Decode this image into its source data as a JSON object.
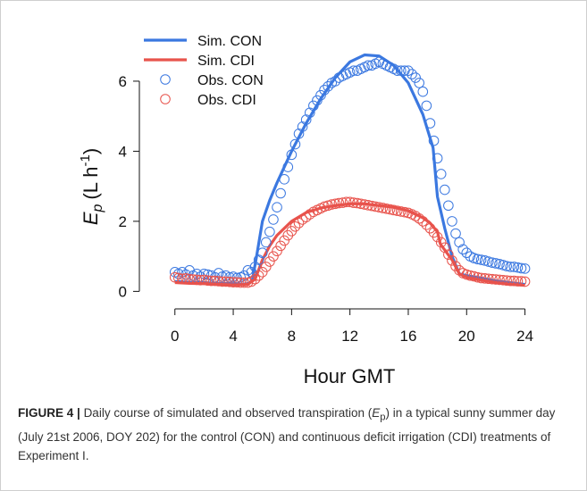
{
  "chart_data": {
    "type": "line_scatter",
    "x_label": "Hour GMT",
    "y_label": {
      "symbol": "E",
      "symbol_sub": "p",
      "unit": "(L h",
      "unit_sup": "-1",
      "close": ")"
    },
    "xlim": [
      -1.7,
      24.7
    ],
    "ylim": [
      -0.5,
      7.4
    ],
    "xticks": [
      0,
      4,
      8,
      12,
      16,
      20,
      24
    ],
    "yticks": [
      0,
      2,
      4,
      6
    ],
    "legend": "top-left",
    "x": [
      0,
      0.25,
      0.5,
      0.75,
      1,
      1.25,
      1.5,
      1.75,
      2,
      2.25,
      2.5,
      2.75,
      3,
      3.25,
      3.5,
      3.75,
      4,
      4.25,
      4.5,
      4.75,
      5,
      5.25,
      5.5,
      5.75,
      6,
      6.25,
      6.5,
      6.75,
      7,
      7.25,
      7.5,
      7.75,
      8,
      8.25,
      8.5,
      8.75,
      9,
      9.25,
      9.5,
      9.75,
      10,
      10.25,
      10.5,
      10.75,
      11,
      11.25,
      11.5,
      11.75,
      12,
      12.25,
      12.5,
      12.75,
      13,
      13.25,
      13.5,
      13.75,
      14,
      14.25,
      14.5,
      14.75,
      15,
      15.25,
      15.5,
      15.75,
      16,
      16.25,
      16.5,
      16.75,
      17,
      17.25,
      17.5,
      17.75,
      18,
      18.25,
      18.5,
      18.75,
      19,
      19.25,
      19.5,
      19.75,
      20,
      20.25,
      20.5,
      20.75,
      21,
      21.25,
      21.5,
      21.75,
      22,
      22.25,
      22.5,
      22.75,
      23,
      23.25,
      23.5,
      23.75,
      24
    ],
    "series": [
      {
        "name": "Sim. CON",
        "color": "#3b78e0",
        "style": "line",
        "x": [
          0,
          1,
          2,
          3,
          4,
          4.5,
          5,
          5.3,
          5.6,
          6,
          6.5,
          7,
          7.5,
          8,
          9,
          10,
          11,
          12,
          13,
          14,
          15,
          16,
          17,
          17.7,
          18,
          18.5,
          19,
          19.5,
          20,
          21,
          22,
          23,
          24
        ],
        "values": [
          0.28,
          0.26,
          0.25,
          0.23,
          0.22,
          0.2,
          0.22,
          0.3,
          1.0,
          2.0,
          2.6,
          3.1,
          3.55,
          4.0,
          4.8,
          5.5,
          6.1,
          6.55,
          6.75,
          6.72,
          6.45,
          5.95,
          5.05,
          4.1,
          2.7,
          1.8,
          1.0,
          0.5,
          0.45,
          0.38,
          0.3,
          0.25,
          0.2
        ]
      },
      {
        "name": "Sim. CDI",
        "color": "#e8534c",
        "style": "line",
        "x": [
          0,
          1,
          2,
          3,
          4,
          5,
          5.5,
          6,
          6.5,
          7,
          8,
          9,
          10,
          11,
          12,
          13,
          14,
          15,
          16,
          17,
          17.5,
          18,
          18.2,
          19,
          19.5,
          20,
          21,
          22,
          23,
          24
        ],
        "values": [
          0.25,
          0.23,
          0.22,
          0.2,
          0.18,
          0.2,
          0.35,
          0.9,
          1.3,
          1.6,
          2.0,
          2.25,
          2.38,
          2.45,
          2.5,
          2.5,
          2.45,
          2.4,
          2.3,
          2.1,
          1.95,
          1.7,
          1.35,
          0.9,
          0.5,
          0.4,
          0.32,
          0.25,
          0.2,
          0.17
        ]
      },
      {
        "name": "Obs. CON",
        "color": "#3b78e0",
        "style": "circle",
        "values": [
          0.55,
          0.5,
          0.55,
          0.48,
          0.6,
          0.45,
          0.5,
          0.42,
          0.5,
          0.48,
          0.45,
          0.4,
          0.52,
          0.42,
          0.45,
          0.4,
          0.42,
          0.38,
          0.4,
          0.45,
          0.6,
          0.55,
          0.7,
          0.9,
          1.1,
          1.4,
          1.7,
          2.05,
          2.4,
          2.8,
          3.2,
          3.55,
          3.9,
          4.2,
          4.5,
          4.7,
          4.9,
          5.1,
          5.3,
          5.45,
          5.6,
          5.75,
          5.85,
          5.95,
          6.0,
          6.1,
          6.15,
          6.2,
          6.25,
          6.3,
          6.3,
          6.35,
          6.4,
          6.45,
          6.45,
          6.5,
          6.55,
          6.5,
          6.45,
          6.4,
          6.35,
          6.3,
          6.3,
          6.3,
          6.3,
          6.2,
          6.1,
          5.95,
          5.7,
          5.3,
          4.8,
          4.3,
          3.8,
          3.35,
          2.9,
          2.45,
          2.0,
          1.65,
          1.4,
          1.2,
          1.1,
          1.0,
          0.95,
          0.92,
          0.9,
          0.88,
          0.85,
          0.82,
          0.8,
          0.78,
          0.75,
          0.72,
          0.7,
          0.7,
          0.68,
          0.66,
          0.65
        ]
      },
      {
        "name": "Obs. CDI",
        "color": "#e8534c",
        "style": "circle",
        "values": [
          0.4,
          0.38,
          0.36,
          0.37,
          0.35,
          0.34,
          0.33,
          0.32,
          0.33,
          0.31,
          0.3,
          0.3,
          0.29,
          0.28,
          0.28,
          0.27,
          0.26,
          0.26,
          0.25,
          0.25,
          0.25,
          0.28,
          0.35,
          0.45,
          0.55,
          0.7,
          0.85,
          1.0,
          1.15,
          1.3,
          1.45,
          1.6,
          1.72,
          1.85,
          1.95,
          2.05,
          2.12,
          2.2,
          2.27,
          2.32,
          2.37,
          2.42,
          2.45,
          2.48,
          2.5,
          2.52,
          2.53,
          2.55,
          2.55,
          2.53,
          2.52,
          2.5,
          2.48,
          2.46,
          2.44,
          2.42,
          2.4,
          2.38,
          2.36,
          2.34,
          2.32,
          2.3,
          2.28,
          2.26,
          2.24,
          2.2,
          2.15,
          2.08,
          2.0,
          1.9,
          1.8,
          1.68,
          1.55,
          1.4,
          1.25,
          1.05,
          0.88,
          0.72,
          0.6,
          0.52,
          0.48,
          0.45,
          0.43,
          0.4,
          0.38,
          0.37,
          0.36,
          0.35,
          0.34,
          0.33,
          0.32,
          0.31,
          0.3,
          0.3,
          0.29,
          0.29,
          0.28
        ]
      }
    ]
  },
  "caption": {
    "label": "FIGURE 4 |",
    "text_before": "Daily course of simulated and observed transpiration (",
    "symbol": "E",
    "symbol_sub": "p",
    "text_after": ") in a typical sunny summer day (July 21st 2006, DOY 202) for the control (CON) and continuous deficit irrigation (CDI) treatments of Experiment I."
  }
}
